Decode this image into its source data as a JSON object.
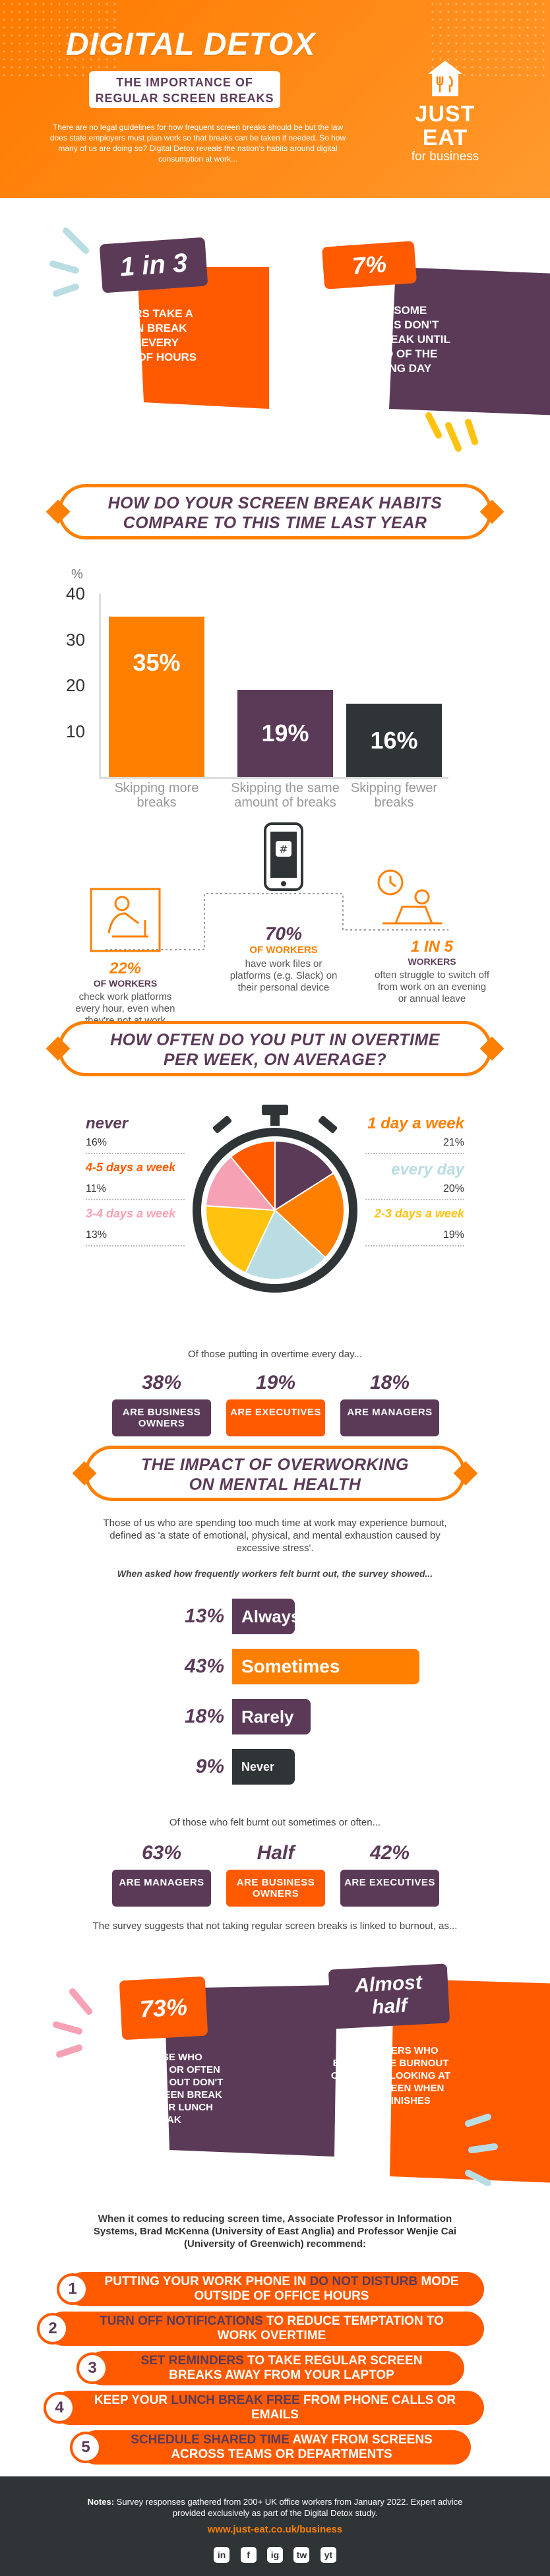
{
  "header": {
    "title": "DIGITAL DETOX",
    "subtitle_line1": "THE IMPORTANCE OF",
    "subtitle_line2": "REGULAR SCREEN BREAKS",
    "intro": "There are no legal guidelines for how frequent screen breaks should be but the law does state employers must plan work so that breaks can be taken if needed. So how many of us are doing so? Digital Detox reveals the nation's habits around digital consumption at work...",
    "logo_line1": "JUST EAT",
    "logo_line2": "for business",
    "colors": {
      "orange": "#ff8000",
      "purple": "#5b3a58",
      "dark": "#2f3436"
    }
  },
  "stats": {
    "left_badge": "1 in 3",
    "left_text": "WORKERS TAKE A SCREEN BREAK ONCE EVERY COUPLE OF HOURS",
    "right_badge": "7%",
    "right_text": "WHILE SOME WORKERS DON'T TAKE A BREAK UNTIL THE END OF THE WORKING DAY"
  },
  "section1": {
    "line1": "HOW DO YOUR SCREEN BREAK HABITS",
    "line2": "COMPARE TO THIS TIME LAST YEAR"
  },
  "chart_data": {
    "type": "bar",
    "ylabel": "%",
    "yticks": [
      "40",
      "30",
      "20",
      "10"
    ],
    "ylim": [
      0,
      40
    ],
    "categories": [
      "Skipping more breaks",
      "Skipping the same amount of breaks",
      "Skipping fewer breaks"
    ],
    "values": [
      35,
      19,
      16
    ],
    "value_labels": [
      "35%",
      "19%",
      "16%"
    ],
    "colors": [
      "#ff8000",
      "#5b3a58",
      "#2f3436"
    ]
  },
  "devices": {
    "left_pct": "22%",
    "left_of": "OF WORKERS",
    "left_text": "check work platforms every hour, even when they're not at work",
    "mid_pct": "70%",
    "mid_of": "OF WORKERS",
    "mid_text": "have work files or platforms (e.g. Slack) on their personal device",
    "right_pct": "1 IN 5",
    "right_of": "WORKERS",
    "right_text": "often struggle to switch off from work on an evening or annual leave"
  },
  "section2": {
    "line1": "HOW OFTEN DO YOU PUT IN OVERTIME",
    "line2": "PER WEEK, ON AVERAGE?"
  },
  "overtime": {
    "items": [
      {
        "label": "never",
        "value": "16%",
        "color": "#5b3a58"
      },
      {
        "label": "4-5 days a week",
        "value": "11%",
        "color": "#ff5a00"
      },
      {
        "label": "3-4 days a week",
        "value": "13%",
        "color": "#f7a1b5"
      },
      {
        "label": "1 day a week",
        "value": "21%",
        "color": "#ff8000"
      },
      {
        "label": "every day",
        "value": "20%",
        "color": "#b9dde2"
      },
      {
        "label": "2-3 days a week",
        "value": "19%",
        "color": "#ffc20e"
      }
    ],
    "everyday_intro": "Of those putting in overtime every day...",
    "everyday": [
      {
        "pct": "38%",
        "label": "ARE BUSINESS OWNERS"
      },
      {
        "pct": "19%",
        "label": "ARE EXECUTIVES"
      },
      {
        "pct": "18%",
        "label": "ARE MANAGERS"
      }
    ]
  },
  "section3": {
    "line1": "THE IMPACT OF OVERWORKING",
    "line2": "ON MENTAL HEALTH",
    "intro": "Those of us who are spending too much time at work may experience burnout, defined as 'a state of emotional, physical, and mental exhaustion caused by excessive stress'.",
    "question": "When asked how frequently workers felt burnt out, the survey showed...",
    "burnout": [
      {
        "pct": "13%",
        "label": "Always",
        "value": 13
      },
      {
        "pct": "43%",
        "label": "Sometimes",
        "value": 43
      },
      {
        "pct": "18%",
        "label": "Rarely",
        "value": 18
      },
      {
        "pct": "9%",
        "label": "Never",
        "value": 9
      }
    ],
    "burnt_intro": "Of those who felt burnt out sometimes or often...",
    "burnt": [
      {
        "pct": "63%",
        "label": "ARE MANAGERS"
      },
      {
        "pct": "Half",
        "label": "ARE BUSINESS OWNERS"
      },
      {
        "pct": "42%",
        "label": "ARE EXECUTIVES"
      }
    ],
    "link_text": "The survey suggests that not taking regular screen breaks is linked to burnout, as..."
  },
  "cards2": {
    "left_badge": "73%",
    "left_text": "OF THOSE WHO SOMETIMES OR OFTEN FEEL BURNT OUT DON'T TAKE A SCREEN BREAK UNTIL THEIR LUNCH BREAK",
    "right_badge_1": "Almost",
    "right_badge_2": "half",
    "right_text": "OF WORKERS WHO EXPERIENCE BURNOUT ONLY STOP LOOKING AT THEIR SCREEN WHEN WORK FINISHES"
  },
  "recommend": {
    "intro": "When it comes to reducing screen time, Associate Professor in Information Systems, Brad McKenna (University of East Anglia) and Professor Wenjie Cai (University of Greenwich) recommend:",
    "items": [
      {
        "num": "1",
        "pre": "PUTTING YOUR WORK PHONE IN ",
        "hl": "DO NOT DISTURB",
        "post": " MODE OUTSIDE OF OFFICE HOURS"
      },
      {
        "num": "2",
        "pre": "",
        "hl": "TURN OFF NOTIFICATIONS",
        "post": " TO REDUCE TEMPTATION TO WORK OVERTIME"
      },
      {
        "num": "3",
        "pre": "",
        "hl": "SET REMINDERS",
        "post": " TO TAKE REGULAR SCREEN BREAKS AWAY FROM YOUR LAPTOP"
      },
      {
        "num": "4",
        "pre": "KEEP YOUR ",
        "hl": "LUNCH BREAK FREE",
        "post": " FROM PHONE CALLS OR EMAILS"
      },
      {
        "num": "5",
        "pre": "",
        "hl": "SCHEDULE SHARED TIME",
        "post": " AWAY FROM SCREENS ACROSS TEAMS OR DEPARTMENTS"
      }
    ]
  },
  "footer": {
    "notes_label": "Notes:",
    "notes": "Survey responses gathered from 200+ UK office workers from January 2022. Expert advice provided exclusively as part of the Digital Detox study.",
    "url": "www.just-eat.co.uk/business",
    "socials": [
      "in",
      "f",
      "ig",
      "tw",
      "yt"
    ]
  }
}
